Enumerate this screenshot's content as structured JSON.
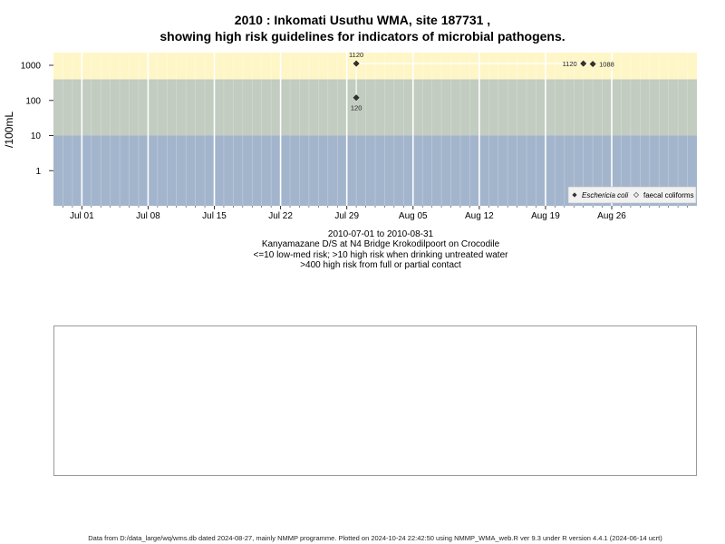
{
  "header": {
    "title_line1": "2010 : Inkomati Usuthu WMA, site 187731 ,",
    "title_line2": "showing high risk guidelines for indicators of microbial pathogens."
  },
  "chart_data": {
    "type": "scatter",
    "y_scale": "log",
    "ylabel": "/100mL",
    "y_ticks": [
      {
        "value": 1,
        "label": "1"
      },
      {
        "value": 10,
        "label": "10"
      },
      {
        "value": 100,
        "label": "100"
      },
      {
        "value": 1000,
        "label": "1000"
      }
    ],
    "x_range": [
      "2010-06-28",
      "2010-09-04"
    ],
    "y_range": [
      0.1,
      2300
    ],
    "x_ticks": [
      {
        "date": "2010-07-01",
        "label": "Jul 01"
      },
      {
        "date": "2010-07-08",
        "label": "Jul 08"
      },
      {
        "date": "2010-07-15",
        "label": "Jul 15"
      },
      {
        "date": "2010-07-22",
        "label": "Jul 22"
      },
      {
        "date": "2010-07-29",
        "label": "Jul 29"
      },
      {
        "date": "2010-08-05",
        "label": "Aug 05"
      },
      {
        "date": "2010-08-12",
        "label": "Aug 12"
      },
      {
        "date": "2010-08-19",
        "label": "Aug 19"
      },
      {
        "date": "2010-08-26",
        "label": "Aug 26"
      }
    ],
    "risk_bands": [
      {
        "from": 0.1,
        "to": 10,
        "color": "#a3b5cc"
      },
      {
        "from": 10,
        "to": 400,
        "color": "#c2ccc0"
      },
      {
        "from": 400,
        "to": 2300,
        "color": "#fff6c8"
      }
    ],
    "series": [
      {
        "name": "Eschericia coli",
        "marker": "filled-diamond",
        "color": "#333333",
        "points": [
          {
            "date": "2010-07-30",
            "value": 120,
            "label": "120"
          },
          {
            "date": "2010-07-30",
            "value": 1120,
            "label": "1120"
          },
          {
            "date": "2010-08-23",
            "value": 1120,
            "label": "1120"
          },
          {
            "date": "2010-08-24",
            "value": 1088,
            "label": "1088"
          }
        ]
      },
      {
        "name": "faecal coliforms",
        "marker": "open-diamond",
        "color": "#555555",
        "points": []
      }
    ],
    "legend_position": "bottom-right"
  },
  "captions": {
    "date_range": "2010-07-01 to 2010-08-31",
    "site_name": "Kanyamazane D/S at N4 Bridge Krokodilpoort on Crocodile",
    "note_low": "<=10 low-med risk; >10 high risk when drinking untreated water",
    "note_high": ">400 high risk from full or partial contact"
  },
  "footer": "Data from D:/data_large/wq/wms.db dated 2024-08-27, mainly NMMP programme. Plotted on 2024-10-24 22:42:50 using NMMP_WMA_web.R ver 9.3 under R version 4.4.1 (2024-06-14 ucrt)"
}
